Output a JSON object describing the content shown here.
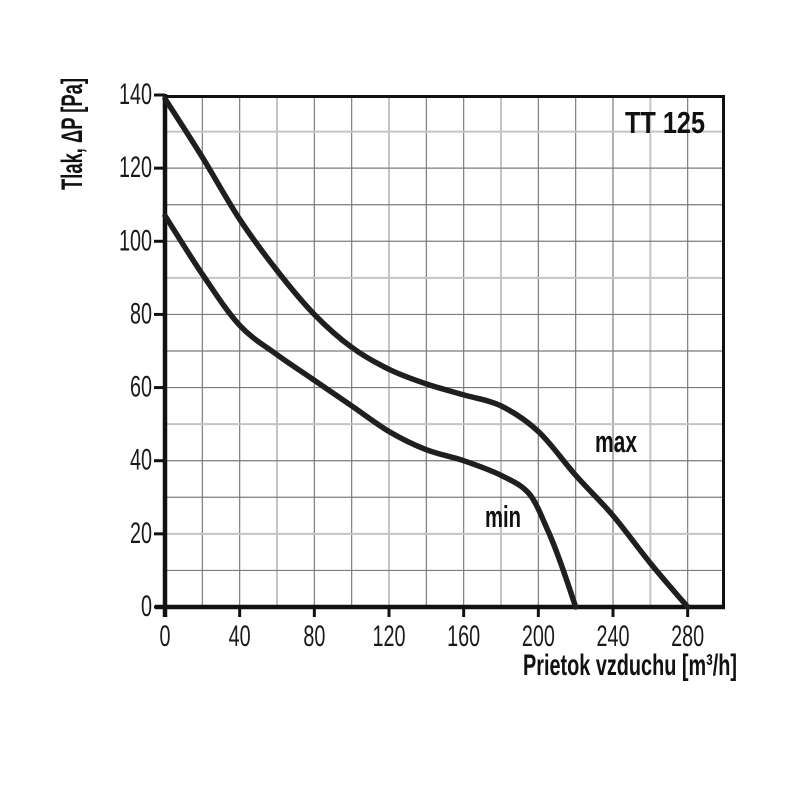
{
  "window": {
    "background": "#ffffff"
  },
  "chart_data": {
    "type": "line",
    "title": "TT 125",
    "xlabel": "Prietok vzduchu  [m³/h]",
    "ylabel": "Tlak, ΔP [Pa]",
    "xlim": [
      0,
      300
    ],
    "ylim": [
      0,
      140
    ],
    "x_ticks": [
      0,
      40,
      80,
      120,
      160,
      200,
      240,
      280
    ],
    "y_ticks": [
      0,
      20,
      40,
      60,
      80,
      100,
      120,
      140
    ],
    "x_gridline_step": 20,
    "y_gridline_step": 10,
    "grid": "on",
    "legend_position": "inline-annotations",
    "series": [
      {
        "name": "max",
        "points": [
          [
            0,
            139
          ],
          [
            20,
            123
          ],
          [
            40,
            106
          ],
          [
            60,
            92
          ],
          [
            80,
            80
          ],
          [
            100,
            71
          ],
          [
            120,
            65
          ],
          [
            140,
            61
          ],
          [
            160,
            58
          ],
          [
            180,
            55
          ],
          [
            200,
            48
          ],
          [
            220,
            36
          ],
          [
            240,
            25
          ],
          [
            260,
            12
          ],
          [
            280,
            0
          ]
        ]
      },
      {
        "name": "min",
        "points": [
          [
            0,
            107
          ],
          [
            20,
            91
          ],
          [
            40,
            77
          ],
          [
            60,
            69
          ],
          [
            80,
            62
          ],
          [
            100,
            55
          ],
          [
            120,
            48
          ],
          [
            140,
            43
          ],
          [
            160,
            40
          ],
          [
            180,
            36
          ],
          [
            195,
            31
          ],
          [
            205,
            21
          ],
          [
            212,
            12
          ],
          [
            220,
            0
          ]
        ]
      }
    ],
    "style": {
      "curve_color": "#1f1f1f",
      "curve_width": 5.5,
      "grid_color": "#7b7b7b",
      "grid_light_color": "#c4c4c4",
      "light_gridlines_x": [
        60,
        120,
        180,
        260
      ],
      "light_gridlines_y": [
        20,
        50,
        90,
        130
      ],
      "frame_color": "#111111",
      "text_color": "#1a1a1a"
    }
  }
}
